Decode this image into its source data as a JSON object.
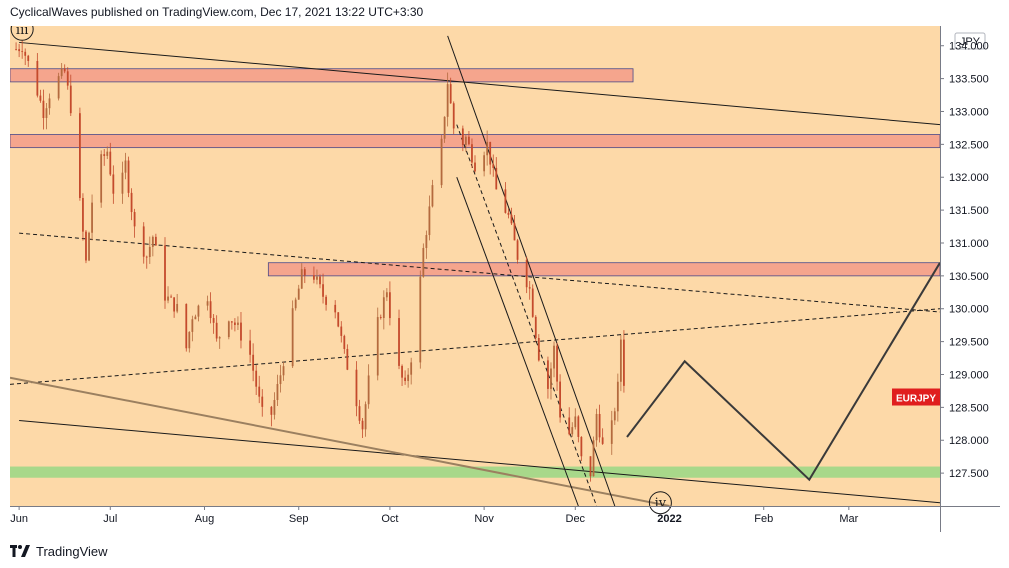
{
  "header": {
    "publisher_text": "CyclicalWaves published on TradingView.com, Dec 17, 2021 13:22 UTC+3:30"
  },
  "footer": {
    "brand_text": "TradingView",
    "logo_icon": "tradingview-logo-icon"
  },
  "colors": {
    "background": "#fdd9a8",
    "axis_bg": "#ffffff",
    "candle_up": "#b46a3e",
    "candle_down": "#c44a2c",
    "zone_fill": "#f5a58d",
    "zone_border": "#4a4a8a",
    "support_fill": "#a8d88a",
    "trendline": "#1a1a1a",
    "gray_trendline": "#9b8060",
    "projection": "#3a3a3a",
    "badge_bg": "#e01e1e",
    "badge_text": "#ffffff"
  },
  "chart_data": {
    "type": "candlestick",
    "symbol_badge": "EURJPY",
    "currency": "JPY",
    "x_ticks": [
      {
        "label": "Jun",
        "date": "2021-06-01",
        "bold": false
      },
      {
        "label": "Jul",
        "date": "2021-07-01",
        "bold": false
      },
      {
        "label": "Aug",
        "date": "2021-08-01",
        "bold": false
      },
      {
        "label": "Sep",
        "date": "2021-09-01",
        "bold": false
      },
      {
        "label": "Oct",
        "date": "2021-10-01",
        "bold": false
      },
      {
        "label": "Nov",
        "date": "2021-11-01",
        "bold": false
      },
      {
        "label": "Dec",
        "date": "2021-12-01",
        "bold": false
      },
      {
        "label": "2022",
        "date": "2022-01-01",
        "bold": true
      },
      {
        "label": "Feb",
        "date": "2022-02-01",
        "bold": false
      },
      {
        "label": "Mar",
        "date": "2022-03-01",
        "bold": false
      }
    ],
    "y_ticks": [
      "134.000",
      "133.500",
      "133.000",
      "132.500",
      "132.000",
      "131.500",
      "131.000",
      "130.500",
      "130.000",
      "129.500",
      "129.000",
      "128.500",
      "128.000",
      "127.500"
    ],
    "ylim": [
      127.0,
      134.3
    ],
    "xlim": [
      "2021-05-29",
      "2022-03-31"
    ],
    "price_path": [
      [
        "2021-05-31",
        133.95
      ],
      [
        "2021-06-02",
        134.0
      ],
      [
        "2021-06-05",
        133.6
      ],
      [
        "2021-06-09",
        133.0
      ],
      [
        "2021-06-12",
        133.4
      ],
      [
        "2021-06-16",
        133.6
      ],
      [
        "2021-06-19",
        132.8
      ],
      [
        "2021-06-21",
        131.6
      ],
      [
        "2021-06-23",
        130.7
      ],
      [
        "2021-06-26",
        132.1
      ],
      [
        "2021-06-30",
        132.4
      ],
      [
        "2021-07-03",
        131.5
      ],
      [
        "2021-07-06",
        132.2
      ],
      [
        "2021-07-09",
        131.2
      ],
      [
        "2021-07-13",
        130.8
      ],
      [
        "2021-07-15",
        131.1
      ],
      [
        "2021-07-19",
        130.2
      ],
      [
        "2021-07-23",
        130.0
      ],
      [
        "2021-07-26",
        129.4
      ],
      [
        "2021-07-28",
        129.9
      ],
      [
        "2021-08-02",
        130.2
      ],
      [
        "2021-08-05",
        129.5
      ],
      [
        "2021-08-09",
        129.9
      ],
      [
        "2021-08-12",
        129.7
      ],
      [
        "2021-08-16",
        129.3
      ],
      [
        "2021-08-19",
        128.6
      ],
      [
        "2021-08-21",
        128.2
      ],
      [
        "2021-08-23",
        128.4
      ],
      [
        "2021-08-26",
        129.0
      ],
      [
        "2021-08-30",
        129.9
      ],
      [
        "2021-09-02",
        130.5
      ],
      [
        "2021-09-05",
        130.6
      ],
      [
        "2021-09-09",
        130.2
      ],
      [
        "2021-09-13",
        130.0
      ],
      [
        "2021-09-16",
        129.3
      ],
      [
        "2021-09-19",
        128.8
      ],
      [
        "2021-09-22",
        128.2
      ],
      [
        "2021-09-26",
        129.6
      ],
      [
        "2021-09-30",
        130.3
      ],
      [
        "2021-10-03",
        129.2
      ],
      [
        "2021-10-06",
        128.8
      ],
      [
        "2021-10-09",
        129.5
      ],
      [
        "2021-10-12",
        130.9
      ],
      [
        "2021-10-15",
        131.8
      ],
      [
        "2021-10-18",
        132.5
      ],
      [
        "2021-10-20",
        133.45
      ],
      [
        "2021-10-23",
        132.4
      ],
      [
        "2021-10-26",
        132.6
      ],
      [
        "2021-10-29",
        132.2
      ],
      [
        "2021-11-02",
        132.5
      ],
      [
        "2021-11-05",
        131.8
      ],
      [
        "2021-11-09",
        131.4
      ],
      [
        "2021-11-12",
        130.8
      ],
      [
        "2021-11-16",
        130.3
      ],
      [
        "2021-11-19",
        129.3
      ],
      [
        "2021-11-22",
        128.8
      ],
      [
        "2021-11-24",
        129.4
      ],
      [
        "2021-11-26",
        128.4
      ],
      [
        "2021-11-29",
        128.1
      ],
      [
        "2021-12-01",
        128.3
      ],
      [
        "2021-12-03",
        127.7
      ],
      [
        "2021-12-06",
        127.5
      ],
      [
        "2021-12-08",
        128.4
      ],
      [
        "2021-12-10",
        127.9
      ],
      [
        "2021-12-13",
        128.2
      ],
      [
        "2021-12-15",
        128.8
      ],
      [
        "2021-12-16",
        129.55
      ],
      [
        "2021-12-17",
        128.9
      ]
    ],
    "zones": [
      {
        "name": "resistance-zone-133-6",
        "x0": "2021-05-29",
        "x1": "2021-12-20",
        "y0": 133.45,
        "y1": 133.65
      },
      {
        "name": "resistance-zone-132-5",
        "x0": "2021-05-29",
        "x1": "2022-03-31",
        "y0": 132.45,
        "y1": 132.65
      },
      {
        "name": "resistance-zone-130-6",
        "x0": "2021-08-22",
        "x1": "2022-03-31",
        "y0": 130.5,
        "y1": 130.7
      },
      {
        "name": "support-zone-127-5",
        "x0": "2021-05-29",
        "x1": "2022-03-31",
        "y0": 127.43,
        "y1": 127.6
      }
    ],
    "trendlines": [
      {
        "name": "upper-channel-line",
        "style": "solid",
        "color": "trendline",
        "p0": [
          "2021-06-01",
          134.05
        ],
        "p1": [
          "2022-03-31",
          132.8
        ]
      },
      {
        "name": "lower-channel-line",
        "style": "solid",
        "color": "trendline",
        "p0": [
          "2021-06-01",
          128.3
        ],
        "p1": [
          "2022-03-31",
          127.05
        ]
      },
      {
        "name": "dashed-mid-falling",
        "style": "dashed",
        "color": "trendline",
        "p0": [
          "2021-06-01",
          131.15
        ],
        "p1": [
          "2022-03-31",
          129.95
        ]
      },
      {
        "name": "dashed-mid-rising",
        "style": "dashed",
        "color": "trendline",
        "p0": [
          "2021-05-29",
          128.85
        ],
        "p1": [
          "2022-03-31",
          130.0
        ]
      },
      {
        "name": "gray-falling-line",
        "style": "solid",
        "color": "gray_trendline",
        "p0": [
          "2021-05-29",
          128.95
        ],
        "p1": [
          "2022-01-01",
          127.0
        ]
      },
      {
        "name": "steep-channel-upper",
        "style": "solid",
        "color": "trendline",
        "p0": [
          "2021-10-20",
          134.15
        ],
        "p1": [
          "2021-12-14",
          127.0
        ]
      },
      {
        "name": "steep-channel-lower",
        "style": "solid",
        "color": "trendline",
        "p0": [
          "2021-10-23",
          132.0
        ],
        "p1": [
          "2021-12-02",
          127.0
        ]
      },
      {
        "name": "steep-channel-dashed",
        "style": "dashed",
        "color": "trendline",
        "p0": [
          "2021-10-23",
          132.8
        ],
        "p1": [
          "2021-12-08",
          127.0
        ]
      }
    ],
    "projection": [
      [
        "2021-12-18",
        128.05
      ],
      [
        "2022-01-06",
        129.2
      ],
      [
        "2022-02-16",
        127.4
      ],
      [
        "2022-03-31",
        130.7
      ]
    ],
    "wave_labels": [
      {
        "name": "wave-label-iii",
        "text": "iii",
        "date": "2021-06-02",
        "price": 134.25
      },
      {
        "name": "wave-label-iv",
        "text": "iv",
        "date": "2021-12-29",
        "price": 127.05
      }
    ]
  }
}
